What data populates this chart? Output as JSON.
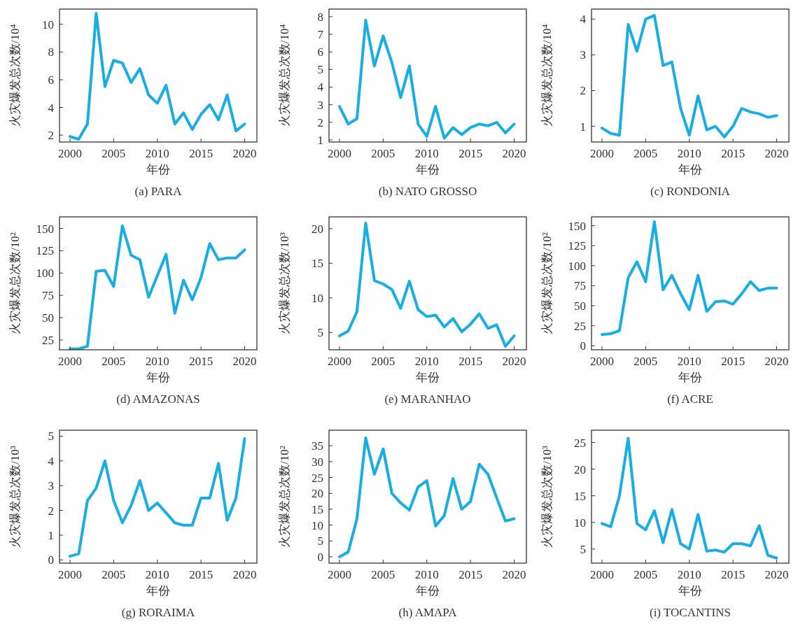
{
  "chart_data": [
    {
      "type": "line",
      "title": "(a) PARA",
      "xlabel": "年份",
      "ylabel": "火灾爆发总次数/10⁴",
      "x": [
        2000,
        2001,
        2002,
        2003,
        2004,
        2005,
        2006,
        2007,
        2008,
        2009,
        2010,
        2011,
        2012,
        2013,
        2014,
        2015,
        2016,
        2017,
        2018,
        2019,
        2020
      ],
      "xlim": [
        1998.8,
        2021.4
      ],
      "xticks": [
        2000,
        2005,
        2010,
        2015,
        2020
      ],
      "ylim": [
        1.5,
        11.1
      ],
      "yticks": [
        2,
        4,
        6,
        8,
        10
      ],
      "series": [
        {
          "color": "#19aee3",
          "values": [
            1.9,
            1.7,
            2.8,
            10.8,
            5.5,
            7.4,
            7.2,
            5.8,
            6.8,
            4.9,
            4.3,
            5.6,
            2.8,
            3.6,
            2.4,
            3.5,
            4.2,
            3.1,
            4.9,
            2.3,
            2.8
          ]
        }
      ]
    },
    {
      "type": "line",
      "title": "(b) NATO GROSSO",
      "xlabel": "年份",
      "ylabel": "火灾爆发总次数/10⁴",
      "x": [
        2000,
        2001,
        2002,
        2003,
        2004,
        2005,
        2006,
        2007,
        2008,
        2009,
        2010,
        2011,
        2012,
        2013,
        2014,
        2015,
        2016,
        2017,
        2018,
        2019,
        2020
      ],
      "xlim": [
        1998.8,
        2021.4
      ],
      "xticks": [
        2000,
        2005,
        2010,
        2015,
        2020
      ],
      "ylim": [
        0.88,
        8.43
      ],
      "yticks": [
        1,
        2,
        3,
        4,
        5,
        6,
        7,
        8
      ],
      "series": [
        {
          "color": "#19aee3",
          "values": [
            2.9,
            1.9,
            2.2,
            7.8,
            5.2,
            6.9,
            5.4,
            3.4,
            5.2,
            1.9,
            1.2,
            2.9,
            1.1,
            1.7,
            1.3,
            1.7,
            1.9,
            1.8,
            2.0,
            1.4,
            1.9
          ]
        }
      ]
    },
    {
      "type": "line",
      "title": "(c) RONDONIA",
      "xlabel": "年份",
      "ylabel": "火灾爆发总次数/10⁴",
      "x": [
        2000,
        2001,
        2002,
        2003,
        2004,
        2005,
        2006,
        2007,
        2008,
        2009,
        2010,
        2011,
        2012,
        2013,
        2014,
        2015,
        2016,
        2017,
        2018,
        2019,
        2020
      ],
      "xlim": [
        1998.8,
        2021.4
      ],
      "xticks": [
        2000,
        2005,
        2010,
        2015,
        2020
      ],
      "ylim": [
        0.56,
        4.28
      ],
      "yticks": [
        1,
        2,
        3,
        4
      ],
      "series": [
        {
          "color": "#19aee3",
          "values": [
            0.95,
            0.8,
            0.75,
            3.85,
            3.1,
            4.0,
            4.1,
            2.7,
            2.8,
            1.5,
            0.75,
            1.85,
            0.9,
            1.0,
            0.7,
            1.0,
            1.5,
            1.4,
            1.35,
            1.25,
            1.3
          ]
        }
      ]
    },
    {
      "type": "line",
      "title": "(d) AMAZONAS",
      "xlabel": "年份",
      "ylabel": "火灾爆发总次数/10²",
      "x": [
        2000,
        2001,
        2002,
        2003,
        2004,
        2005,
        2006,
        2007,
        2008,
        2009,
        2010,
        2011,
        2012,
        2013,
        2014,
        2015,
        2016,
        2017,
        2018,
        2019,
        2020
      ],
      "xlim": [
        1998.8,
        2021.4
      ],
      "xticks": [
        2000,
        2005,
        2010,
        2015,
        2020
      ],
      "ylim": [
        14,
        163
      ],
      "yticks": [
        25,
        50,
        75,
        100,
        125,
        150
      ],
      "series": [
        {
          "color": "#19aee3",
          "values": [
            15,
            15,
            18,
            102,
            103,
            85,
            153,
            120,
            115,
            73,
            97,
            121,
            55,
            92,
            70,
            95,
            133,
            115,
            117,
            117,
            126
          ]
        }
      ]
    },
    {
      "type": "line",
      "title": "(e) MARANHAO",
      "xlabel": "年份",
      "ylabel": "火灾爆发总次数/10³",
      "x": [
        2000,
        2001,
        2002,
        2003,
        2004,
        2005,
        2006,
        2007,
        2008,
        2009,
        2010,
        2011,
        2012,
        2013,
        2014,
        2015,
        2016,
        2017,
        2018,
        2019,
        2020
      ],
      "xlim": [
        1998.8,
        2021.4
      ],
      "xticks": [
        2000,
        2005,
        2010,
        2015,
        2020
      ],
      "ylim": [
        2.5,
        21.7
      ],
      "yticks": [
        5,
        10,
        15,
        20
      ],
      "series": [
        {
          "color": "#19aee3",
          "values": [
            4.5,
            5.2,
            8,
            20.8,
            12.5,
            12,
            11.2,
            8.5,
            12.4,
            8.3,
            7.3,
            7.5,
            5.8,
            7.0,
            5.1,
            6.2,
            7.7,
            5.6,
            6.1,
            3.0,
            4.5
          ]
        }
      ]
    },
    {
      "type": "line",
      "title": "(f) ACRE",
      "xlabel": "年份",
      "ylabel": "火灾爆发总次数/10²",
      "x": [
        2000,
        2001,
        2002,
        2003,
        2004,
        2005,
        2006,
        2007,
        2008,
        2009,
        2010,
        2011,
        2012,
        2013,
        2014,
        2015,
        2016,
        2017,
        2018,
        2019,
        2020
      ],
      "xlim": [
        1998.8,
        2021.4
      ],
      "xticks": [
        2000,
        2005,
        2010,
        2015,
        2020
      ],
      "ylim": [
        -5,
        161
      ],
      "yticks": [
        0,
        25,
        50,
        75,
        100,
        125,
        150
      ],
      "series": [
        {
          "color": "#19aee3",
          "values": [
            14,
            15,
            19,
            85,
            105,
            80,
            155,
            70,
            88,
            65,
            45,
            88,
            43,
            55,
            56,
            52,
            65,
            80,
            69,
            72,
            72
          ]
        }
      ]
    },
    {
      "type": "line",
      "title": "(g) RORAIMA",
      "xlabel": "年份",
      "ylabel": "火灾爆发总次数/10³",
      "x": [
        2000,
        2001,
        2002,
        2003,
        2004,
        2005,
        2006,
        2007,
        2008,
        2009,
        2010,
        2011,
        2012,
        2013,
        2014,
        2015,
        2016,
        2017,
        2018,
        2019,
        2020
      ],
      "xlim": [
        1998.8,
        2021.4
      ],
      "xticks": [
        2000,
        2005,
        2010,
        2015,
        2020
      ],
      "ylim": [
        -0.13,
        5.24
      ],
      "yticks": [
        0,
        1,
        2,
        3,
        4,
        5
      ],
      "series": [
        {
          "color": "#19aee3",
          "values": [
            0.15,
            0.25,
            2.4,
            2.9,
            4.0,
            2.4,
            1.5,
            2.2,
            3.2,
            2.0,
            2.3,
            1.9,
            1.5,
            1.4,
            1.4,
            2.5,
            2.5,
            3.9,
            1.6,
            2.5,
            4.9
          ]
        }
      ]
    },
    {
      "type": "line",
      "title": "(h) AMAPA",
      "xlabel": "年份",
      "ylabel": "火灾爆发总次数/10²",
      "x": [
        2000,
        2001,
        2002,
        2003,
        2004,
        2005,
        2006,
        2007,
        2008,
        2009,
        2010,
        2011,
        2012,
        2013,
        2014,
        2015,
        2016,
        2017,
        2018,
        2019,
        2020
      ],
      "xlim": [
        1998.8,
        2021.4
      ],
      "xticks": [
        2000,
        2005,
        2010,
        2015,
        2020
      ],
      "ylim": [
        -2,
        39.9
      ],
      "yticks": [
        0,
        5,
        10,
        15,
        20,
        25,
        30,
        35
      ],
      "series": [
        {
          "color": "#19aee3",
          "values": [
            0,
            1.5,
            12,
            37.5,
            26,
            34,
            20,
            17,
            14.7,
            22,
            24,
            9.7,
            13,
            24.7,
            15,
            17.4,
            29.2,
            26,
            18.6,
            11.3,
            12
          ]
        }
      ]
    },
    {
      "type": "line",
      "title": "(i) TOCANTINS",
      "xlabel": "年份",
      "ylabel": "火灾爆发总次数/10³",
      "x": [
        2000,
        2001,
        2002,
        2003,
        2004,
        2005,
        2006,
        2007,
        2008,
        2009,
        2010,
        2011,
        2012,
        2013,
        2014,
        2015,
        2016,
        2017,
        2018,
        2019,
        2020
      ],
      "xlim": [
        1998.8,
        2021.4
      ],
      "xticks": [
        2000,
        2005,
        2010,
        2015,
        2020
      ],
      "ylim": [
        2.35,
        27.3
      ],
      "yticks": [
        5,
        10,
        15,
        20,
        25
      ],
      "series": [
        {
          "color": "#19aee3",
          "values": [
            9.8,
            9.2,
            15,
            25.8,
            9.8,
            8.6,
            12.2,
            6.2,
            12.4,
            6.0,
            5.0,
            11.5,
            4.6,
            4.8,
            4.4,
            6.0,
            6.0,
            5.6,
            9.4,
            3.8,
            3.3
          ]
        }
      ]
    }
  ]
}
